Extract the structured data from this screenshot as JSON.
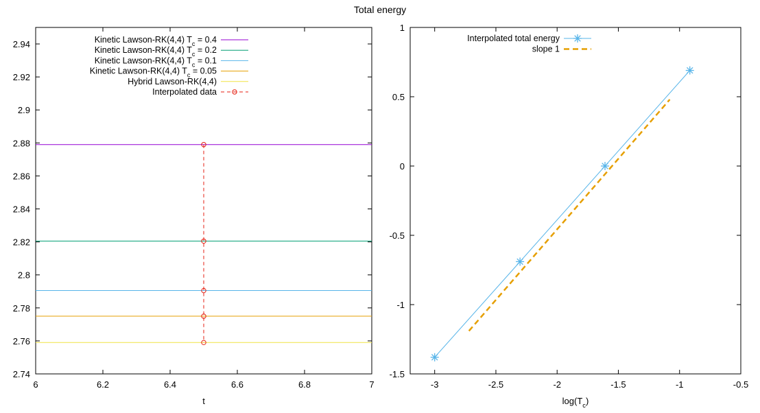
{
  "figure_title": "Total energy",
  "chart_data": [
    {
      "type": "line",
      "title": "",
      "xlabel": "t",
      "ylabel": "",
      "xlim": [
        6,
        7
      ],
      "ylim": [
        2.74,
        2.95
      ],
      "x_ticks": [
        6,
        6.2,
        6.4,
        6.6,
        6.8,
        7
      ],
      "x_tick_labels": [
        "6",
        "6.2",
        "6.4",
        "6.6",
        "6.8",
        "7"
      ],
      "y_ticks": [
        2.74,
        2.76,
        2.78,
        2.8,
        2.82,
        2.84,
        2.86,
        2.88,
        2.9,
        2.92,
        2.94
      ],
      "y_tick_labels": [
        "2.74",
        "2.76",
        "2.78",
        "2.8",
        "2.82",
        "2.84",
        "2.86",
        "2.88",
        "2.9",
        "2.92",
        "2.94"
      ],
      "grid": false,
      "legend_position": "top-left",
      "series": [
        {
          "name": "Kinetic Lawson-RK(4,4) T_c = 0.4",
          "label_main": "Kinetic Lawson-RK(4,4) T",
          "label_sub": "c",
          "label_tail": " = 0.4",
          "color": "#9400d3",
          "style": "solid",
          "x": [
            6,
            7
          ],
          "y": [
            2.879,
            2.879
          ]
        },
        {
          "name": "Kinetic Lawson-RK(4,4) T_c = 0.2",
          "label_main": "Kinetic Lawson-RK(4,4) T",
          "label_sub": "c",
          "label_tail": " = 0.2",
          "color": "#009e73",
          "style": "solid",
          "x": [
            6,
            7
          ],
          "y": [
            2.8205,
            2.8205
          ]
        },
        {
          "name": "Kinetic Lawson-RK(4,4) T_c = 0.1",
          "label_main": "Kinetic Lawson-RK(4,4) T",
          "label_sub": "c",
          "label_tail": " = 0.1",
          "color": "#56b4e9",
          "style": "solid",
          "x": [
            6,
            7
          ],
          "y": [
            2.7905,
            2.7905
          ]
        },
        {
          "name": "Kinetic Lawson-RK(4,4) T_c = 0.05",
          "label_main": "Kinetic Lawson-RK(4,4) T",
          "label_sub": "c",
          "label_tail": " = 0.05",
          "color": "#e69f00",
          "style": "solid",
          "x": [
            6,
            7
          ],
          "y": [
            2.775,
            2.775
          ]
        },
        {
          "name": "Hybrid Lawson-RK(4,4)",
          "label_main": "Hybrid Lawson-RK(4,4)",
          "label_sub": "",
          "label_tail": "",
          "color": "#f0e442",
          "style": "solid",
          "x": [
            6,
            7
          ],
          "y": [
            2.759,
            2.759
          ]
        },
        {
          "name": "Interpolated data",
          "label_main": "Interpolated data",
          "label_sub": "",
          "label_tail": "",
          "color": "#e51e10",
          "style": "dashed",
          "marker": "circle",
          "x": [
            6.5,
            6.5,
            6.5,
            6.5,
            6.5
          ],
          "y": [
            2.879,
            2.8205,
            2.7905,
            2.775,
            2.759
          ]
        }
      ]
    },
    {
      "type": "line",
      "title": "",
      "xlabel": "log(T_c)",
      "xlabel_main": "log(T",
      "xlabel_sub": "c",
      "xlabel_tail": ")",
      "ylabel": "",
      "xlim": [
        -3.2,
        -0.5
      ],
      "ylim": [
        -1.5,
        1
      ],
      "x_ticks": [
        -3,
        -2.5,
        -2,
        -1.5,
        -1,
        -0.5
      ],
      "x_tick_labels": [
        "-3",
        "-2.5",
        "-2",
        "-1.5",
        "-1",
        "-0.5"
      ],
      "y_ticks": [
        -1.5,
        -1,
        -0.5,
        0,
        0.5,
        1
      ],
      "y_tick_labels": [
        "-1.5",
        "-1",
        "-0.5",
        "0",
        "0.5",
        "1"
      ],
      "grid": false,
      "legend_position": "top-left",
      "series": [
        {
          "name": "Interpolated total energy",
          "color": "#56b4e9",
          "style": "solid",
          "marker": "asterisk",
          "x": [
            -3.0,
            -2.303,
            -1.609,
            -0.916
          ],
          "y": [
            -1.38,
            -0.69,
            0.0,
            0.69
          ]
        },
        {
          "name": "slope 1",
          "color": "#e69f00",
          "style": "dashed",
          "x": [
            -2.72,
            -1.08
          ],
          "y": [
            -1.19,
            0.48
          ]
        }
      ]
    }
  ]
}
